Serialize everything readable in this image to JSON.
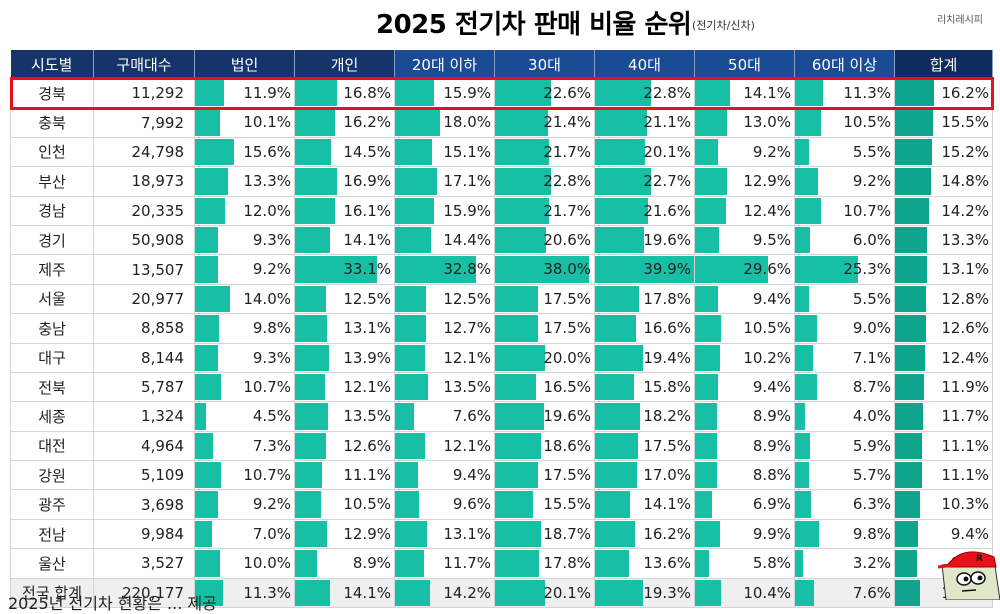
{
  "header": {
    "title": "2025  전기차 판매 비율 순위",
    "subtitle": "(전기차/신차)",
    "brand": "리치레시피"
  },
  "chart_data": {
    "type": "table",
    "title": "2025 전기차 판매 비율 순위",
    "subtitle": "(전기차/신차)",
    "columns": [
      "시도별",
      "구매대수",
      "법인",
      "개인",
      "20대 이하",
      "30대",
      "40대",
      "50대",
      "60대 이상",
      "합계"
    ],
    "highlighted_row": "경북",
    "rows": [
      {
        "region": "경북",
        "count": "11,292",
        "values": [
          11.9,
          16.8,
          15.9,
          22.6,
          22.8,
          14.1,
          11.3,
          16.2
        ]
      },
      {
        "region": "충북",
        "count": "7,992",
        "values": [
          10.1,
          16.2,
          18.0,
          21.4,
          21.1,
          13.0,
          10.5,
          15.5
        ]
      },
      {
        "region": "인천",
        "count": "24,798",
        "values": [
          15.6,
          14.5,
          15.1,
          21.7,
          20.1,
          9.2,
          5.5,
          15.2
        ]
      },
      {
        "region": "부산",
        "count": "18,973",
        "values": [
          13.3,
          16.9,
          17.1,
          22.8,
          22.7,
          12.9,
          9.2,
          14.8
        ]
      },
      {
        "region": "경남",
        "count": "20,335",
        "values": [
          12.0,
          16.1,
          15.9,
          21.7,
          21.6,
          12.4,
          10.7,
          14.2
        ]
      },
      {
        "region": "경기",
        "count": "50,908",
        "values": [
          9.3,
          14.1,
          14.4,
          20.6,
          19.6,
          9.5,
          6.0,
          13.3
        ]
      },
      {
        "region": "제주",
        "count": "13,507",
        "values": [
          9.2,
          33.1,
          32.8,
          38.0,
          39.9,
          29.6,
          25.3,
          13.1
        ]
      },
      {
        "region": "서울",
        "count": "20,977",
        "values": [
          14.0,
          12.5,
          12.5,
          17.5,
          17.8,
          9.4,
          5.5,
          12.8
        ]
      },
      {
        "region": "충남",
        "count": "8,858",
        "values": [
          9.8,
          13.1,
          12.7,
          17.5,
          16.6,
          10.5,
          9.0,
          12.6
        ]
      },
      {
        "region": "대구",
        "count": "8,144",
        "values": [
          9.3,
          13.9,
          12.1,
          20.0,
          19.4,
          10.2,
          7.1,
          12.4
        ]
      },
      {
        "region": "전북",
        "count": "5,787",
        "values": [
          10.7,
          12.1,
          13.5,
          16.5,
          15.8,
          9.4,
          8.7,
          11.9
        ]
      },
      {
        "region": "세종",
        "count": "1,324",
        "values": [
          4.5,
          13.5,
          7.6,
          19.6,
          18.2,
          8.9,
          4.0,
          11.7
        ]
      },
      {
        "region": "대전",
        "count": "4,964",
        "values": [
          7.3,
          12.6,
          12.1,
          18.6,
          17.5,
          8.9,
          5.9,
          11.1
        ]
      },
      {
        "region": "강원",
        "count": "5,109",
        "values": [
          10.7,
          11.1,
          9.4,
          17.5,
          17.0,
          8.8,
          5.7,
          11.1
        ]
      },
      {
        "region": "광주",
        "count": "3,698",
        "values": [
          9.2,
          10.5,
          9.6,
          15.5,
          14.1,
          6.9,
          6.3,
          10.3
        ]
      },
      {
        "region": "전남",
        "count": "9,984",
        "values": [
          7.0,
          12.9,
          13.1,
          18.7,
          16.2,
          9.9,
          9.8,
          9.4
        ]
      },
      {
        "region": "울산",
        "count": "3,527",
        "values": [
          10.0,
          8.9,
          11.7,
          17.8,
          13.6,
          5.8,
          3.2,
          8.9
        ]
      },
      {
        "region": "전국 합계",
        "count": "220,177",
        "values": [
          11.3,
          14.1,
          14.2,
          20.1,
          19.3,
          10.4,
          7.6,
          10.5
        ]
      }
    ],
    "bar_scale_max_percent": 40
  },
  "colors": {
    "header_dark": "#14346a",
    "header_age": "#1a4c96",
    "bar": "#17c0a4",
    "bar_total": "#0fa58c",
    "highlight": "#e8101a"
  },
  "caption": "2025년 전기차 현황은 ... 제공"
}
